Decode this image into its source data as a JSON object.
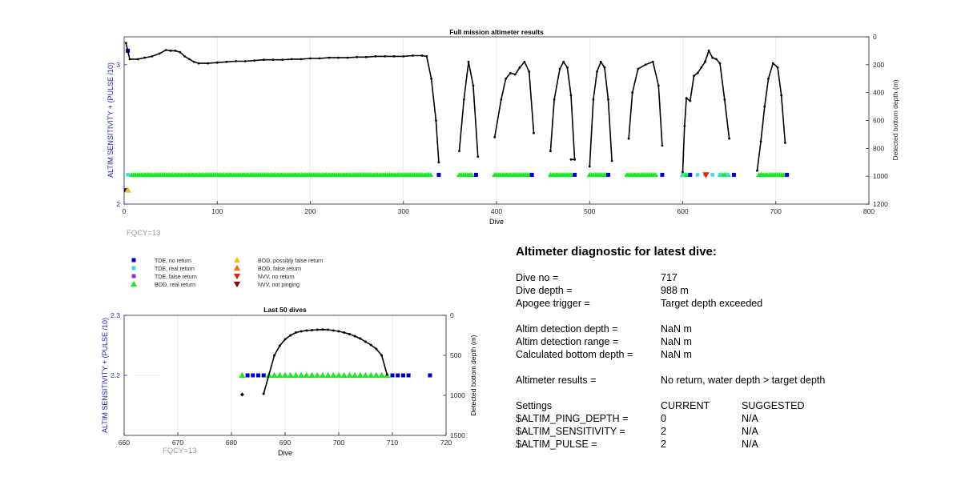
{
  "colors": {
    "tde_no_return": "#0000d0",
    "tde_real_return": "#3fd9e6",
    "tde_false_return": "#8c35c9",
    "bod_real_return": "#22e62d",
    "bod_possibly_false": "#f2c21a",
    "bod_false_return": "#e07812",
    "nvv_no_return": "#d62a0c",
    "nvv_not_pinging": "#7a0d0d",
    "depth_line": "#000000",
    "left_axis": "#1f1fb4",
    "fqcy": "#9a9a9a"
  },
  "legend": {
    "items": [
      {
        "label": "TDE, no return",
        "marker": "square",
        "color": "#0000d0"
      },
      {
        "label": "TDE, real return",
        "marker": "square",
        "color": "#3fd9e6"
      },
      {
        "label": "TDE, false return",
        "marker": "square",
        "color": "#8c35c9"
      },
      {
        "label": "BOD, real return",
        "marker": "triangle-up",
        "color": "#22e62d"
      },
      {
        "label": "BOD, possibly false return",
        "marker": "triangle-up",
        "color": "#f2c21a"
      },
      {
        "label": "BOD, false return",
        "marker": "triangle-up",
        "color": "#e07812"
      },
      {
        "label": "NVV, no return",
        "marker": "triangle-down",
        "color": "#d62a0c"
      },
      {
        "label": "NVV, not pinging",
        "marker": "triangle-down",
        "color": "#7a0d0d"
      }
    ]
  },
  "chart_data": [
    {
      "type": "scatter",
      "title": "Full mission altimeter results",
      "xlabel": "Dive",
      "ylabel_left": "ALTIM SENSITIVITY + (PULSE /10)",
      "ylabel_right": "Detected bottom depth (m)",
      "annotation": "FQCY=13",
      "xlim": [
        0,
        800
      ],
      "x_ticks": [
        0,
        100,
        200,
        300,
        400,
        500,
        600,
        700,
        800
      ],
      "ylim_left": [
        2,
        3.2
      ],
      "y_left_ticks": [
        2,
        3
      ],
      "ylim_right_reversed": [
        0,
        1200
      ],
      "y_right_ticks": [
        0,
        200,
        400,
        600,
        800,
        1000,
        1200
      ],
      "grid": "vertical",
      "depth_line": {
        "x": [
          2,
          6,
          15,
          22,
          30,
          38,
          45,
          50,
          55,
          60,
          65,
          70,
          75,
          80,
          90,
          100,
          110,
          120,
          130,
          140,
          150,
          160,
          170,
          180,
          190,
          200,
          210,
          220,
          230,
          240,
          250,
          260,
          270,
          280,
          290,
          300,
          310,
          320,
          325,
          330,
          335,
          338,
          null,
          360,
          365,
          370,
          375,
          380,
          null,
          398,
          405,
          410,
          415,
          420,
          425,
          430,
          435,
          440,
          null,
          458,
          462,
          468,
          472,
          476,
          480,
          484,
          480,
          null,
          500,
          504,
          508,
          512,
          516,
          520,
          524,
          null,
          542,
          546,
          552,
          560,
          568,
          574,
          578,
          null,
          600,
          602,
          604,
          608,
          612,
          616,
          620,
          624,
          628,
          632,
          636,
          640,
          645,
          650,
          null,
          680,
          684,
          688,
          692,
          697,
          702,
          706,
          710
        ],
        "depth": [
          45,
          160,
          160,
          150,
          140,
          120,
          95,
          100,
          100,
          110,
          140,
          160,
          180,
          190,
          190,
          185,
          180,
          175,
          175,
          170,
          165,
          165,
          165,
          160,
          160,
          155,
          155,
          150,
          150,
          150,
          145,
          145,
          140,
          140,
          140,
          140,
          135,
          135,
          140,
          300,
          600,
          900,
          null,
          820,
          450,
          180,
          350,
          860,
          null,
          720,
          450,
          300,
          260,
          270,
          220,
          180,
          250,
          690,
          null,
          820,
          450,
          230,
          180,
          220,
          420,
          880,
          880,
          null,
          930,
          450,
          250,
          180,
          220,
          450,
          890,
          null,
          730,
          400,
          230,
          200,
          180,
          350,
          780,
          null,
          970,
          640,
          440,
          460,
          280,
          260,
          220,
          180,
          100,
          150,
          160,
          190,
          450,
          730,
          null,
          960,
          750,
          500,
          300,
          190,
          220,
          420,
          760
        ]
      },
      "tde_no_return_points": [
        [
          2,
          2.1
        ],
        [
          4,
          3.1
        ],
        [
          338,
          2.21
        ],
        [
          378,
          2.21
        ],
        [
          438,
          2.21
        ],
        [
          484,
          2.21
        ],
        [
          520,
          2.21
        ],
        [
          578,
          2.21
        ],
        [
          608,
          2.21
        ],
        [
          655,
          2.21
        ],
        [
          712,
          2.21
        ]
      ],
      "bod_possibly_false_points": [
        [
          4,
          2.1
        ]
      ],
      "bod_real_return_segments": [
        [
          8,
          330
        ],
        [
          360,
          375
        ],
        [
          398,
          436
        ],
        [
          458,
          480
        ],
        [
          500,
          518
        ],
        [
          540,
          572
        ],
        [
          600,
          606
        ],
        [
          640,
          650
        ],
        [
          682,
          710
        ]
      ],
      "tde_real_return_segments": [
        [
          4,
          8
        ],
        [
          600,
          650
        ]
      ],
      "nvv_no_return_points": [
        [
          625,
          2.21
        ]
      ]
    },
    {
      "type": "scatter",
      "title": "Last 50 dives",
      "xlabel": "Dive",
      "ylabel_left": "ALTIM SENSITIVITY + (PULSE /10)",
      "ylabel_right": "Detected bottom depth (m)",
      "annotation": "FQCY=13",
      "xlim": [
        660,
        720
      ],
      "x_ticks": [
        660,
        670,
        680,
        690,
        700,
        710,
        720
      ],
      "ylim_left": [
        2.1,
        2.3
      ],
      "y_left_ticks": [
        2.2,
        2.3
      ],
      "ylim_right_reversed": [
        0,
        1500
      ],
      "y_right_ticks": [
        0,
        500,
        1000,
        1500
      ],
      "grid": "vertical",
      "depth_points": [
        [
          682,
          990
        ],
        [
          686,
          980
        ],
        [
          688,
          500
        ],
        [
          689,
          380
        ],
        [
          690,
          300
        ],
        [
          691,
          250
        ],
        [
          692,
          215
        ],
        [
          693,
          200
        ],
        [
          694,
          190
        ],
        [
          695,
          185
        ],
        [
          696,
          180
        ],
        [
          697,
          178
        ],
        [
          698,
          180
        ],
        [
          699,
          190
        ],
        [
          700,
          200
        ],
        [
          701,
          215
        ],
        [
          702,
          235
        ],
        [
          703,
          260
        ],
        [
          704,
          290
        ],
        [
          705,
          330
        ],
        [
          706,
          370
        ],
        [
          707,
          420
        ],
        [
          708,
          500
        ],
        [
          709,
          740
        ]
      ],
      "depth_line_x": [
        686,
        688,
        689,
        690,
        691,
        692,
        693,
        694,
        695,
        696,
        697,
        698,
        699,
        700,
        701,
        702,
        703,
        704,
        705,
        706,
        707,
        708,
        709
      ],
      "bod_real_return_x": [
        682,
        687,
        688,
        689,
        690,
        691,
        692,
        693,
        694,
        695,
        696,
        697,
        698,
        699,
        700,
        701,
        702,
        703,
        704,
        705,
        706,
        707,
        708,
        709
      ],
      "tde_no_return_x": [
        683,
        684,
        685,
        686,
        710,
        711,
        712,
        713,
        717
      ],
      "level": 2.2
    }
  ],
  "diagnostic": {
    "title": "Altimeter diagnostic for latest dive:",
    "dive_no_label": "Dive no =",
    "dive_no_value": "717",
    "dive_depth_label": "Dive depth =",
    "dive_depth_value": "988 m",
    "apogee_label": "Apogee trigger =",
    "apogee_value": "Target depth exceeded",
    "altim_det_depth_label": "Altim detection depth =",
    "altim_det_depth_value": "NaN m",
    "altim_det_range_label": "Altim detection range =",
    "altim_det_range_value": "NaN m",
    "calc_bottom_label": "Calculated bottom depth =",
    "calc_bottom_value": "NaN m",
    "results_label": "Altimeter results =",
    "results_value": "No return, water depth > target depth",
    "settings_label": "Settings",
    "current_label": "CURRENT",
    "suggested_label": "SUGGESTED",
    "ping_depth_label": "$ALTIM_PING_DEPTH =",
    "ping_depth_current": "0",
    "ping_depth_suggested": "N/A",
    "sensitivity_label": "$ALTIM_SENSITIVITY =",
    "sensitivity_current": "2",
    "sensitivity_suggested": "N/A",
    "pulse_label": "$ALTIM_PULSE =",
    "pulse_current": "2",
    "pulse_suggested": "N/A"
  }
}
